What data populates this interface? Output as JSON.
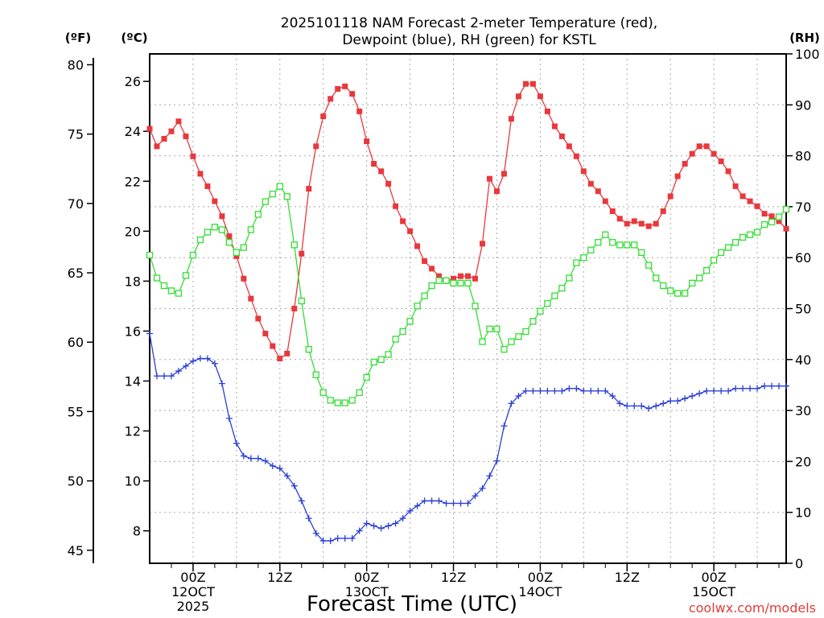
{
  "chart_data": {
    "type": "line",
    "title": [
      "2025101118 NAM Forecast 2-meter Temperature (red),",
      "Dewpoint (blue), RH (green) for KSTL"
    ],
    "xlabel": "Forecast Time (UTC)",
    "credit": "coolwx.com/models",
    "units": {
      "fahrenheit": "(ºF)",
      "celsius": "(ºC)",
      "rh": "(RH)"
    },
    "x_start_hour": 18,
    "x_step_hours": 1,
    "x_tick_labels": [
      {
        "hour": 24,
        "lines": [
          "00Z",
          "12OCT",
          "2025"
        ]
      },
      {
        "hour": 36,
        "lines": [
          "12Z"
        ]
      },
      {
        "hour": 48,
        "lines": [
          "00Z",
          "13OCT"
        ]
      },
      {
        "hour": 60,
        "lines": [
          "12Z"
        ]
      },
      {
        "hour": 72,
        "lines": [
          "00Z",
          "14OCT"
        ]
      },
      {
        "hour": 84,
        "lines": [
          "12Z"
        ]
      },
      {
        "hour": 96,
        "lines": [
          "00Z",
          "15OCT"
        ]
      }
    ],
    "celsius_axis": {
      "range": [
        6.7,
        27.1
      ],
      "ticks": [
        8,
        10,
        12,
        14,
        16,
        18,
        20,
        22,
        24,
        26
      ]
    },
    "fahrenheit_axis": {
      "ticks": [
        45,
        50,
        55,
        60,
        65,
        70,
        75,
        80
      ]
    },
    "rh_axis": {
      "range": [
        0,
        100
      ],
      "ticks": [
        0,
        10,
        20,
        30,
        40,
        50,
        60,
        70,
        80,
        90,
        100
      ]
    },
    "series": [
      {
        "name": "Temperature",
        "color": "#e8383d",
        "marker": "filled-square",
        "axis": "celsius",
        "values": [
          24.1,
          23.4,
          23.7,
          24.0,
          24.4,
          23.8,
          23.0,
          22.3,
          21.8,
          21.2,
          20.6,
          19.8,
          19.0,
          18.1,
          17.3,
          16.5,
          15.9,
          15.4,
          14.9,
          15.1,
          16.9,
          19.1,
          21.7,
          23.4,
          24.6,
          25.3,
          25.7,
          25.8,
          25.5,
          24.8,
          23.6,
          22.7,
          22.4,
          21.9,
          21.0,
          20.4,
          20.0,
          19.4,
          18.8,
          18.5,
          18.2,
          18.0,
          18.1,
          18.2,
          18.2,
          18.1,
          19.5,
          22.1,
          21.6,
          22.3,
          24.5,
          25.4,
          25.9,
          25.9,
          25.4,
          24.8,
          24.2,
          23.8,
          23.4,
          23.0,
          22.4,
          21.9,
          21.6,
          21.2,
          20.8,
          20.5,
          20.3,
          20.4,
          20.3,
          20.2,
          20.3,
          20.8,
          21.4,
          22.2,
          22.7,
          23.1,
          23.4,
          23.4,
          23.1,
          22.8,
          22.4,
          21.8,
          21.4,
          21.2,
          21.0,
          20.7,
          20.6,
          20.4,
          20.1
        ]
      },
      {
        "name": "Dewpoint",
        "color": "#2b3fd6",
        "marker": "plus",
        "axis": "celsius",
        "values": [
          15.9,
          14.2,
          14.2,
          14.2,
          14.4,
          14.6,
          14.8,
          14.9,
          14.9,
          14.7,
          13.9,
          12.5,
          11.5,
          11.0,
          10.9,
          10.9,
          10.8,
          10.6,
          10.5,
          10.2,
          9.8,
          9.2,
          8.5,
          7.9,
          7.6,
          7.6,
          7.7,
          7.7,
          7.7,
          8.0,
          8.3,
          8.2,
          8.1,
          8.2,
          8.3,
          8.5,
          8.8,
          9.0,
          9.2,
          9.2,
          9.2,
          9.1,
          9.1,
          9.1,
          9.1,
          9.4,
          9.7,
          10.2,
          10.8,
          12.2,
          13.1,
          13.4,
          13.6,
          13.6,
          13.6,
          13.6,
          13.6,
          13.6,
          13.7,
          13.7,
          13.6,
          13.6,
          13.6,
          13.6,
          13.4,
          13.1,
          13.0,
          13.0,
          13.0,
          12.9,
          13.0,
          13.1,
          13.2,
          13.2,
          13.3,
          13.4,
          13.5,
          13.6,
          13.6,
          13.6,
          13.6,
          13.7,
          13.7,
          13.7,
          13.7,
          13.8,
          13.8,
          13.8,
          13.8
        ]
      },
      {
        "name": "RH",
        "color": "#33dd33",
        "marker": "open-square",
        "axis": "rh",
        "values": [
          60.5,
          56.0,
          54.5,
          53.5,
          53.0,
          56.5,
          60.5,
          63.5,
          65.0,
          66.0,
          65.5,
          63.0,
          61.0,
          62.0,
          65.5,
          68.5,
          71.0,
          72.5,
          74.0,
          72.0,
          62.5,
          51.5,
          42.0,
          37.0,
          33.5,
          32.0,
          31.5,
          31.5,
          32.0,
          33.5,
          36.5,
          39.5,
          40.0,
          41.0,
          44.0,
          45.5,
          47.5,
          50.5,
          52.5,
          54.5,
          55.5,
          55.5,
          55.0,
          55.0,
          55.0,
          50.5,
          43.5,
          46.0,
          46.0,
          42.0,
          43.5,
          44.5,
          45.5,
          47.5,
          49.5,
          51.0,
          52.5,
          54.0,
          56.0,
          59.0,
          60.0,
          61.5,
          63.0,
          64.5,
          63.0,
          62.5,
          62.5,
          62.5,
          61.0,
          58.5,
          56.0,
          54.5,
          53.5,
          53.0,
          53.0,
          55.0,
          56.0,
          57.5,
          59.5,
          61.0,
          62.0,
          63.0,
          64.0,
          64.5,
          65.0,
          66.5,
          67.0,
          68.0,
          69.5
        ]
      }
    ],
    "grid": true
  }
}
